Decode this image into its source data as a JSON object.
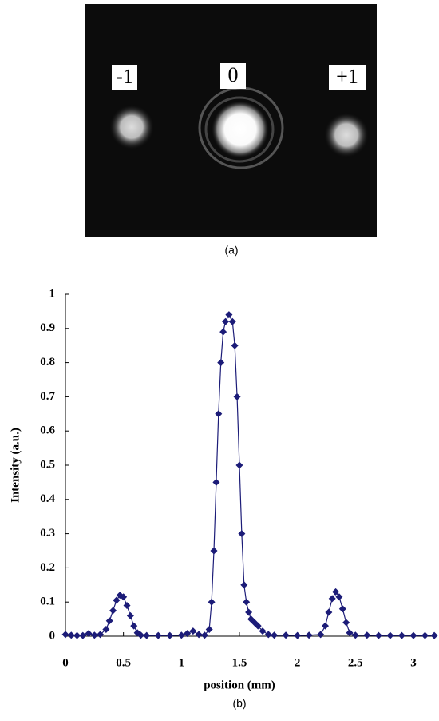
{
  "figure_a": {
    "labels": [
      "-1",
      "0",
      "+1"
    ],
    "caption": "(a)"
  },
  "chart_data": {
    "type": "line",
    "caption": "(b)",
    "xlabel": "position (mm)",
    "ylabel": "Intensity (a.u.)",
    "xlim": [
      0,
      3.2
    ],
    "ylim": [
      0,
      1
    ],
    "xticks": [
      0,
      0.5,
      1,
      1.5,
      2,
      2.5,
      3
    ],
    "yticks": [
      0,
      0.1,
      0.2,
      0.3,
      0.4,
      0.5,
      0.6,
      0.7,
      0.8,
      0.9,
      1
    ],
    "x": [
      0,
      0.05,
      0.1,
      0.15,
      0.2,
      0.25,
      0.3,
      0.35,
      0.38,
      0.41,
      0.44,
      0.47,
      0.5,
      0.53,
      0.56,
      0.59,
      0.62,
      0.65,
      0.7,
      0.8,
      0.9,
      1.0,
      1.05,
      1.1,
      1.15,
      1.2,
      1.24,
      1.26,
      1.28,
      1.3,
      1.32,
      1.34,
      1.36,
      1.38,
      1.41,
      1.44,
      1.46,
      1.48,
      1.5,
      1.52,
      1.54,
      1.56,
      1.58,
      1.6,
      1.63,
      1.66,
      1.7,
      1.75,
      1.8,
      1.9,
      2.0,
      2.1,
      2.2,
      2.24,
      2.27,
      2.3,
      2.33,
      2.36,
      2.39,
      2.42,
      2.45,
      2.5,
      2.6,
      2.7,
      2.8,
      2.9,
      3.0,
      3.1,
      3.18
    ],
    "series": [
      {
        "color": "#1c1c78",
        "values": [
          0.005,
          0.003,
          0.002,
          0.002,
          0.008,
          0.003,
          0.005,
          0.02,
          0.045,
          0.075,
          0.105,
          0.12,
          0.115,
          0.09,
          0.06,
          0.03,
          0.01,
          0.003,
          0.002,
          0.002,
          0.002,
          0.003,
          0.008,
          0.015,
          0.005,
          0.003,
          0.02,
          0.1,
          0.25,
          0.45,
          0.65,
          0.8,
          0.89,
          0.92,
          0.94,
          0.92,
          0.85,
          0.7,
          0.5,
          0.3,
          0.15,
          0.1,
          0.07,
          0.05,
          0.04,
          0.03,
          0.015,
          0.005,
          0.003,
          0.003,
          0.002,
          0.003,
          0.005,
          0.03,
          0.07,
          0.11,
          0.13,
          0.115,
          0.08,
          0.04,
          0.01,
          0.003,
          0.003,
          0.002,
          0.002,
          0.002,
          0.002,
          0.002,
          0.002
        ]
      }
    ]
  }
}
